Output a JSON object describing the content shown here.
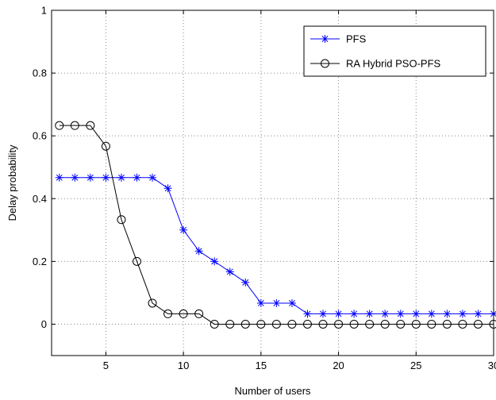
{
  "chart_data": {
    "type": "line",
    "title": "",
    "xlabel": "Number of users",
    "ylabel": "Delay probability",
    "xlim": [
      1.5,
      30
    ],
    "ylim": [
      -0.1,
      1.0
    ],
    "xticks": [
      5,
      10,
      15,
      20,
      25,
      30
    ],
    "xtick_labels": [
      "5",
      "10",
      "15",
      "20",
      "25",
      "30"
    ],
    "yticks": [
      0,
      0.2,
      0.4,
      0.6,
      0.8,
      1.0
    ],
    "ytick_labels": [
      "0",
      "0.2",
      "0.4",
      "0.6",
      "0.8",
      "1"
    ],
    "grid": true,
    "legend_position": "top-right",
    "x": [
      2,
      3,
      4,
      5,
      6,
      7,
      8,
      9,
      10,
      11,
      12,
      13,
      14,
      15,
      16,
      17,
      18,
      19,
      20,
      21,
      22,
      23,
      24,
      25,
      26,
      27,
      28,
      29,
      30
    ],
    "series": [
      {
        "name": "PFS",
        "marker": "star",
        "color": "#0000ff",
        "values": [
          0.467,
          0.467,
          0.467,
          0.467,
          0.467,
          0.467,
          0.467,
          0.433,
          0.3,
          0.233,
          0.2,
          0.167,
          0.133,
          0.067,
          0.067,
          0.067,
          0.033,
          0.033,
          0.033,
          0.033,
          0.033,
          0.033,
          0.033,
          0.033,
          0.033,
          0.033,
          0.033,
          0.033,
          0.033
        ]
      },
      {
        "name": "RA Hybrid PSO-PFS",
        "marker": "circle",
        "color": "#000000",
        "values": [
          0.633,
          0.633,
          0.633,
          0.567,
          0.333,
          0.2,
          0.067,
          0.033,
          0.033,
          0.033,
          0.0,
          0.0,
          0.0,
          0.0,
          0.0,
          0.0,
          0.0,
          0.0,
          0.0,
          0.0,
          0.0,
          0.0,
          0.0,
          0.0,
          0.0,
          0.0,
          0.0,
          0.0,
          0.0
        ]
      }
    ]
  }
}
